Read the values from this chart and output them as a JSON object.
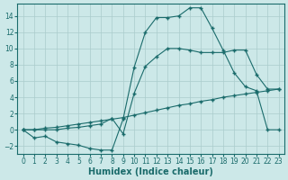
{
  "xlabel": "Humidex (Indice chaleur)",
  "bg_color": "#cce8e8",
  "grid_color": "#aacccc",
  "line_color": "#1a6b6b",
  "xlim": [
    -0.5,
    23.5
  ],
  "ylim": [
    -3.0,
    15.5
  ],
  "xticks": [
    0,
    1,
    2,
    3,
    4,
    5,
    6,
    7,
    8,
    9,
    10,
    11,
    12,
    13,
    14,
    15,
    16,
    17,
    18,
    19,
    20,
    21,
    22,
    23
  ],
  "yticks": [
    -2,
    0,
    2,
    4,
    6,
    8,
    10,
    12,
    14
  ],
  "line1_x": [
    0,
    1,
    2,
    3,
    4,
    5,
    6,
    7,
    8,
    9,
    10,
    11,
    12,
    13,
    14,
    15,
    16,
    17,
    18,
    19,
    20,
    21,
    22,
    23
  ],
  "line1_y": [
    0.0,
    -1.0,
    -0.8,
    -1.5,
    -1.7,
    -1.9,
    -2.3,
    -2.5,
    -2.5,
    1.3,
    7.7,
    12.0,
    13.8,
    13.8,
    14.0,
    15.0,
    15.0,
    12.5,
    9.8,
    7.0,
    5.3,
    4.8,
    0,
    0
  ],
  "line2_x": [
    0,
    1,
    2,
    3,
    4,
    5,
    6,
    7,
    8,
    9,
    10,
    11,
    12,
    13,
    14,
    15,
    16,
    17,
    18,
    19,
    20,
    21,
    22,
    23
  ],
  "line2_y": [
    0.0,
    0.0,
    0.2,
    0.3,
    0.5,
    0.7,
    0.9,
    1.1,
    1.3,
    1.5,
    1.8,
    2.1,
    2.4,
    2.7,
    3.0,
    3.2,
    3.5,
    3.7,
    4.0,
    4.2,
    4.4,
    4.6,
    4.8,
    5.0
  ],
  "line3_x": [
    0,
    1,
    2,
    3,
    4,
    5,
    6,
    7,
    8,
    9,
    10,
    11,
    12,
    13,
    14,
    15,
    16,
    17,
    18,
    19,
    20,
    21,
    22,
    23
  ],
  "line3_y": [
    0.0,
    0.0,
    0.0,
    0.0,
    0.2,
    0.3,
    0.5,
    0.7,
    1.4,
    -0.5,
    4.5,
    7.8,
    9.0,
    10.0,
    10.0,
    9.8,
    9.5,
    9.5,
    9.5,
    9.8,
    9.8,
    6.8,
    5.0,
    5.0
  ],
  "marker": "+",
  "markersize": 3.5,
  "linewidth": 0.8,
  "xlabel_fontsize": 7,
  "tick_fontsize": 5.5
}
